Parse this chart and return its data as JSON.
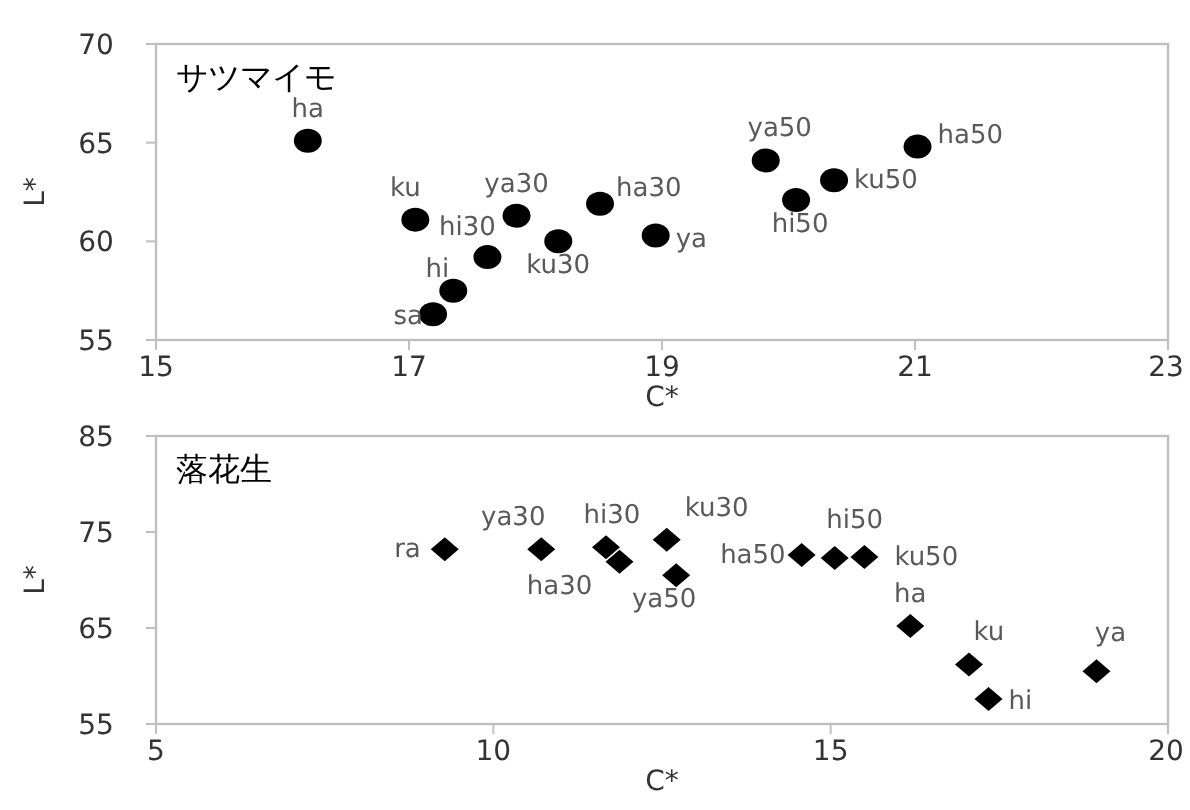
{
  "chart_data": [
    {
      "type": "scatter",
      "title": "サツマイモ",
      "xlabel": "C*",
      "ylabel": "L*",
      "xlim": [
        15,
        23
      ],
      "xticks": [
        15,
        17,
        19,
        21,
        23
      ],
      "ylim": [
        55,
        70
      ],
      "yticks": [
        55,
        60,
        65,
        70
      ],
      "grid": false,
      "marker": "circle",
      "series": [
        {
          "color": "#000000",
          "x": [
            16.2,
            17.05,
            17.85,
            17.62,
            18.18,
            18.51,
            18.95,
            17.35,
            17.19,
            19.82,
            20.06,
            20.36,
            21.02
          ],
          "values": [
            65.1,
            61.1,
            61.3,
            59.2,
            60.0,
            61.9,
            60.3,
            57.5,
            56.3,
            64.1,
            62.1,
            63.1,
            64.8
          ]
        }
      ],
      "annotations": [
        {
          "text": "ha",
          "x": 16.2,
          "y": 65.1
        },
        {
          "text": "ku",
          "x": 17.05,
          "y": 61.1
        },
        {
          "text": "ya30",
          "x": 17.85,
          "y": 61.3
        },
        {
          "text": "hi30",
          "x": 17.62,
          "y": 59.2
        },
        {
          "text": "ku30",
          "x": 18.18,
          "y": 60.0
        },
        {
          "text": "ha30",
          "x": 18.51,
          "y": 61.9
        },
        {
          "text": "ya",
          "x": 18.95,
          "y": 60.3
        },
        {
          "text": "hi",
          "x": 17.35,
          "y": 57.5
        },
        {
          "text": "sa",
          "x": 17.19,
          "y": 56.3
        },
        {
          "text": "ya50",
          "x": 19.82,
          "y": 64.1
        },
        {
          "text": "hi50",
          "x": 20.06,
          "y": 62.1
        },
        {
          "text": "ku50",
          "x": 20.36,
          "y": 63.1
        },
        {
          "text": "ha50",
          "x": 21.02,
          "y": 64.8
        }
      ]
    },
    {
      "type": "scatter",
      "title": "落花生",
      "xlabel": "C*",
      "ylabel": "L*",
      "xlim": [
        5,
        20
      ],
      "xticks": [
        5,
        10,
        15,
        20
      ],
      "ylim": [
        55,
        85
      ],
      "yticks": [
        55,
        65,
        75,
        85
      ],
      "grid": false,
      "marker": "diamond",
      "series": [
        {
          "color": "#000000",
          "x": [
            9.28,
            10.71,
            11.67,
            11.87,
            12.57,
            12.71,
            14.57,
            15.06,
            15.5,
            16.18,
            17.05,
            17.34,
            18.94
          ],
          "values": [
            73.2,
            73.2,
            73.4,
            71.9,
            74.2,
            70.5,
            72.6,
            72.3,
            72.4,
            65.2,
            61.2,
            57.6,
            60.5
          ]
        }
      ],
      "annotations": [
        {
          "text": "ra",
          "x": 9.28,
          "y": 73.2
        },
        {
          "text": "ya30",
          "x": 10.71,
          "y": 73.2
        },
        {
          "text": "hi30",
          "x": 11.67,
          "y": 73.4
        },
        {
          "text": "ha30",
          "x": 11.87,
          "y": 71.9
        },
        {
          "text": "ku30",
          "x": 12.57,
          "y": 74.2
        },
        {
          "text": "ya50",
          "x": 12.71,
          "y": 70.5
        },
        {
          "text": "ha50",
          "x": 14.57,
          "y": 72.6
        },
        {
          "text": "hi50",
          "x": 15.06,
          "y": 72.3
        },
        {
          "text": "ku50",
          "x": 15.5,
          "y": 72.4
        },
        {
          "text": "ha",
          "x": 16.18,
          "y": 65.2
        },
        {
          "text": "ku",
          "x": 17.05,
          "y": 61.2
        },
        {
          "text": "hi",
          "x": 17.34,
          "y": 57.6
        },
        {
          "text": "ya",
          "x": 18.94,
          "y": 60.5
        }
      ]
    }
  ]
}
